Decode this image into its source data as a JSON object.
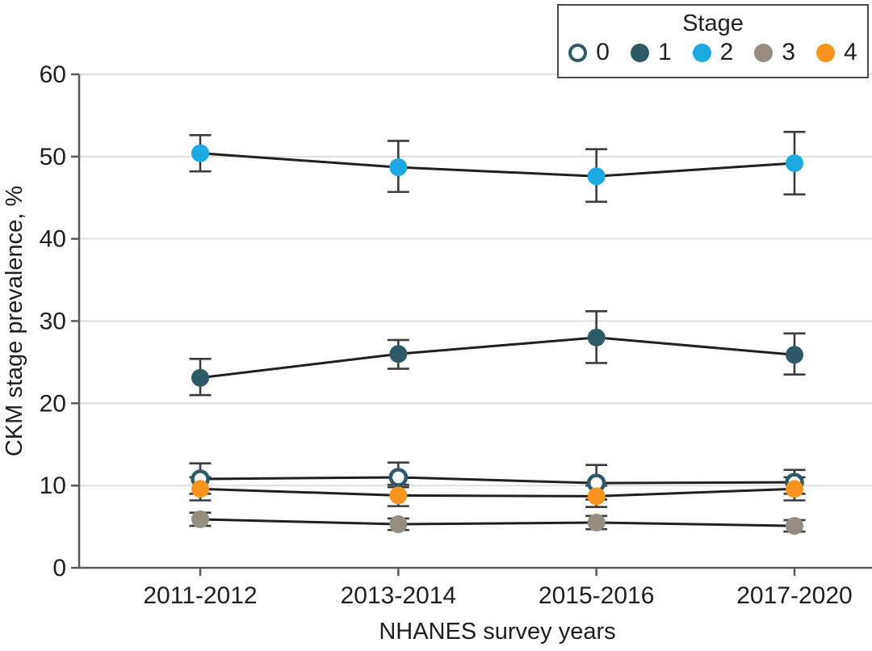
{
  "figure": {
    "background": "#FFFFFF",
    "text_color": "#1E1E1E",
    "axis_color": "#58595B",
    "grid_color": "#DFDFDF",
    "legend": {
      "title": "Stage",
      "border_color": "#4A4A4A"
    }
  },
  "chart_data": {
    "type": "line",
    "title": "",
    "xlabel": "NHANES survey years",
    "ylabel": "CKM stage prevalence, %",
    "categories": [
      "2011-2012",
      "2013-2014",
      "2015-2016",
      "2017-2020"
    ],
    "ylim": [
      0,
      60
    ],
    "yticks": [
      0,
      10,
      20,
      30,
      40,
      50,
      60
    ],
    "grid": "horizontal",
    "legend_position": "top-right",
    "legend_title": "Stage",
    "error_bars": "vertical whiskers with caps (confidence intervals)",
    "line_color": "#231F20",
    "error_bar_color": "#3C3C3C",
    "series": [
      {
        "name": "0",
        "marker": "open-circle",
        "color": "#2E5A68",
        "values": [
          10.8,
          11.0,
          10.3,
          10.4
        ],
        "ci_low": [
          9.0,
          9.8,
          8.3,
          9.0
        ],
        "ci_high": [
          12.7,
          12.8,
          12.5,
          11.9
        ]
      },
      {
        "name": "1",
        "marker": "filled-circle",
        "color": "#2E5A68",
        "values": [
          23.1,
          26.0,
          28.0,
          25.9
        ],
        "ci_low": [
          21.0,
          24.2,
          24.9,
          23.5
        ],
        "ci_high": [
          25.4,
          27.7,
          31.2,
          28.5
        ]
      },
      {
        "name": "2",
        "marker": "filled-circle",
        "color": "#1CA9E2",
        "values": [
          50.4,
          48.7,
          47.6,
          49.2
        ],
        "ci_low": [
          48.2,
          45.7,
          44.5,
          45.4
        ],
        "ci_high": [
          52.6,
          51.9,
          50.9,
          53.0
        ]
      },
      {
        "name": "3",
        "marker": "filled-circle",
        "color": "#968D80",
        "values": [
          5.9,
          5.3,
          5.5,
          5.1
        ],
        "ci_low": [
          5.1,
          4.6,
          4.7,
          4.4
        ],
        "ci_high": [
          6.7,
          6.0,
          6.3,
          5.8
        ]
      },
      {
        "name": "4",
        "marker": "filled-circle",
        "color": "#F7941E",
        "values": [
          9.6,
          8.8,
          8.7,
          9.6
        ],
        "ci_low": [
          8.2,
          7.5,
          7.4,
          8.2
        ],
        "ci_high": [
          11.0,
          10.1,
          10.0,
          11.0
        ]
      }
    ]
  }
}
